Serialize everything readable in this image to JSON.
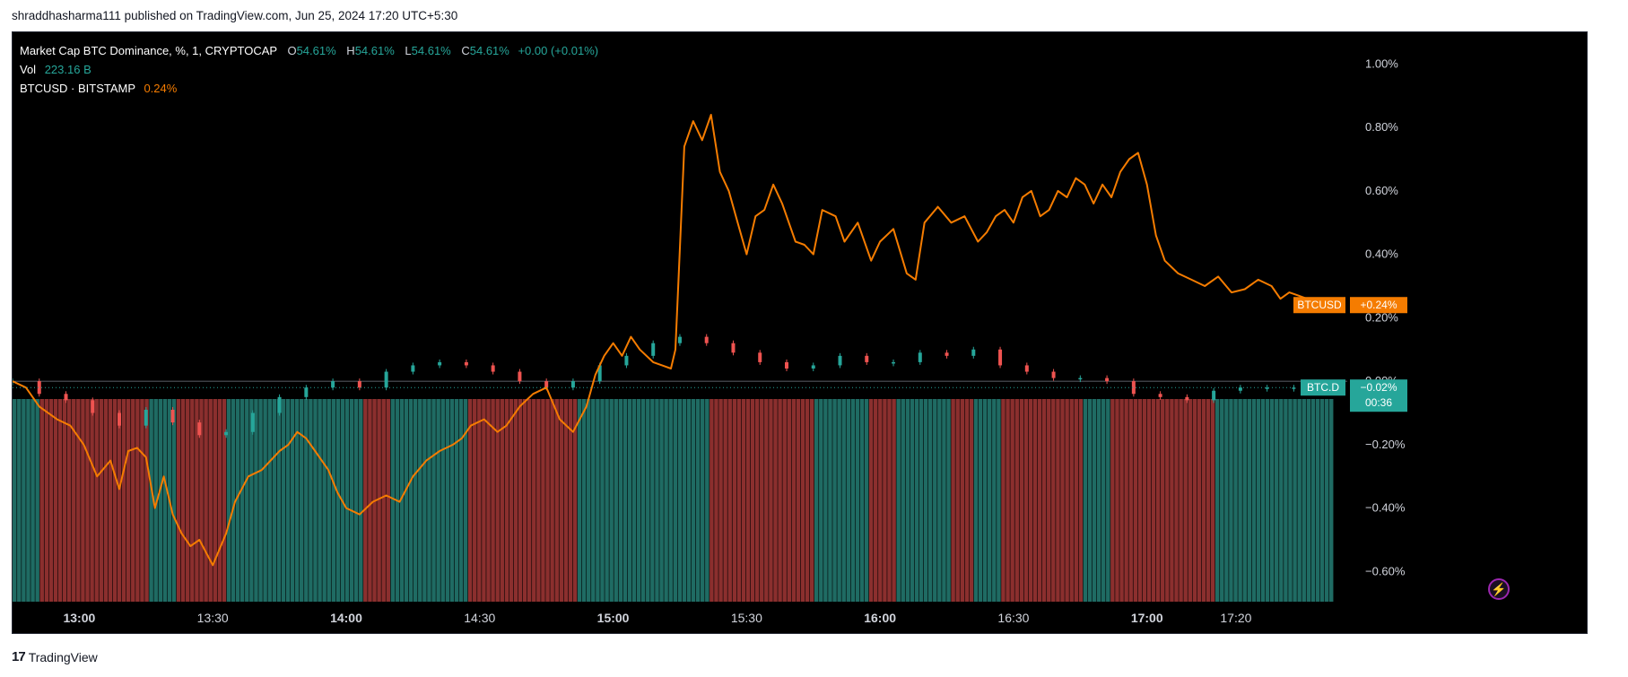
{
  "publish_line": "shraddhasharma111 published on TradingView.com, Jun 25, 2024 17:20 UTC+5:30",
  "legend": {
    "main_title": "Market Cap BTC Dominance, %, 1, CRYPTOCAP",
    "o_label": "O",
    "o_value": "54.61%",
    "h_label": "H",
    "h_value": "54.61%",
    "l_label": "L",
    "l_value": "54.61%",
    "c_label": "C",
    "c_value": "54.61%",
    "change": "+0.00 (+0.01%)",
    "vol_label": "Vol",
    "vol_value": "223.16 B",
    "compare_label": "BTCUSD · BITSTAMP",
    "compare_value": "0.24%"
  },
  "footer": {
    "brand": "TradingView",
    "logo": "tradingview-logo-icon"
  },
  "icons": {
    "alert": "lightning-icon"
  },
  "colors": {
    "up": "#26a69a",
    "down": "#ef5350",
    "compare": "#f57c00",
    "background": "#000000",
    "axis_text": "#d1d4dc"
  },
  "chart_data": {
    "type": "line",
    "title": "Market Cap BTC Dominance, %, 1, CRYPTOCAP",
    "xlabel": "",
    "ylabel": "",
    "x_ticks": [
      "13:00",
      "13:30",
      "14:00",
      "14:30",
      "15:00",
      "15:30",
      "16:00",
      "16:30",
      "17:00",
      "17:20"
    ],
    "x_tick_minutes": [
      780,
      810,
      840,
      870,
      900,
      930,
      960,
      990,
      1020,
      1040
    ],
    "x_range_minutes": [
      765,
      1063
    ],
    "y_ticks": [
      "1.00%",
      "0.80%",
      "0.60%",
      "0.40%",
      "0.20%",
      "0.00%",
      "−0.20%",
      "−0.40%",
      "−0.60%"
    ],
    "y_tick_values": [
      1.0,
      0.8,
      0.6,
      0.4,
      0.2,
      0.0,
      -0.2,
      -0.4,
      -0.6
    ],
    "ylim": [
      -0.695,
      1.1
    ],
    "grid": false,
    "price_labels": [
      {
        "name": "BTCUSD",
        "value_text": "+0.24%",
        "value": 0.24
      },
      {
        "name": "BTC.D",
        "value_text": "−0.02%",
        "countdown": "00:36",
        "value": -0.02
      }
    ],
    "series": [
      {
        "name": "BTCUSD · BITSTAMP",
        "style": "line",
        "time_minutes": [
          765,
          768,
          771,
          775,
          778,
          781,
          784,
          787,
          789,
          791,
          793,
          795,
          797,
          799,
          801,
          803,
          805,
          807,
          810,
          813,
          815,
          818,
          821,
          823,
          825,
          827,
          829,
          831,
          833,
          836,
          838,
          840,
          843,
          846,
          849,
          852,
          855,
          858,
          861,
          864,
          866,
          868,
          871,
          874,
          876,
          879,
          882,
          885,
          888,
          891,
          894,
          896,
          898,
          900,
          902,
          904,
          906,
          909,
          911,
          913,
          914,
          915,
          916,
          918,
          920,
          922,
          924,
          926,
          928,
          930,
          932,
          934,
          936,
          938,
          941,
          943,
          945,
          947,
          950,
          952,
          955,
          958,
          960,
          963,
          966,
          968,
          970,
          973,
          976,
          979,
          982,
          984,
          986,
          988,
          990,
          992,
          994,
          996,
          998,
          1000,
          1002,
          1004,
          1006,
          1008,
          1010,
          1012,
          1014,
          1016,
          1018,
          1020,
          1022,
          1024,
          1027,
          1030,
          1033,
          1036,
          1039,
          1042,
          1045,
          1048,
          1050,
          1052,
          1054,
          1056,
          1058,
          1060,
          1062
        ],
        "values": [
          0.0,
          -0.02,
          -0.08,
          -0.12,
          -0.14,
          -0.2,
          -0.3,
          -0.25,
          -0.34,
          -0.22,
          -0.21,
          -0.24,
          -0.4,
          -0.3,
          -0.42,
          -0.48,
          -0.52,
          -0.5,
          -0.58,
          -0.48,
          -0.38,
          -0.3,
          -0.28,
          -0.25,
          -0.22,
          -0.2,
          -0.16,
          -0.18,
          -0.22,
          -0.28,
          -0.35,
          -0.4,
          -0.42,
          -0.38,
          -0.36,
          -0.38,
          -0.3,
          -0.25,
          -0.22,
          -0.2,
          -0.18,
          -0.14,
          -0.12,
          -0.16,
          -0.14,
          -0.08,
          -0.04,
          -0.02,
          -0.12,
          -0.16,
          -0.08,
          0.02,
          0.08,
          0.12,
          0.08,
          0.14,
          0.1,
          0.06,
          0.05,
          0.04,
          0.1,
          0.42,
          0.74,
          0.82,
          0.76,
          0.84,
          0.66,
          0.6,
          0.5,
          0.4,
          0.52,
          0.54,
          0.62,
          0.56,
          0.44,
          0.43,
          0.4,
          0.54,
          0.52,
          0.44,
          0.5,
          0.38,
          0.44,
          0.48,
          0.34,
          0.32,
          0.5,
          0.55,
          0.5,
          0.52,
          0.44,
          0.47,
          0.52,
          0.54,
          0.5,
          0.58,
          0.6,
          0.52,
          0.54,
          0.6,
          0.58,
          0.64,
          0.62,
          0.56,
          0.62,
          0.58,
          0.66,
          0.7,
          0.72,
          0.62,
          0.46,
          0.38,
          0.34,
          0.32,
          0.3,
          0.33,
          0.28,
          0.29,
          0.32,
          0.3,
          0.26,
          0.28,
          0.27,
          0.26,
          0.24,
          0.23,
          0.24
        ]
      },
      {
        "name": "Market Cap BTC Dominance",
        "style": "candles",
        "time_minutes": [
          765,
          771,
          777,
          783,
          789,
          795,
          801,
          807,
          813,
          819,
          825,
          831,
          837,
          843,
          849,
          855,
          861,
          867,
          873,
          879,
          885,
          891,
          897,
          903,
          909,
          915,
          921,
          927,
          933,
          939,
          945,
          951,
          957,
          963,
          969,
          975,
          981,
          987,
          993,
          999,
          1005,
          1011,
          1017,
          1023,
          1029,
          1035,
          1041,
          1047,
          1053,
          1059
        ],
        "values": [
          0.0,
          -0.04,
          -0.06,
          -0.1,
          -0.14,
          -0.09,
          -0.13,
          -0.17,
          -0.16,
          -0.1,
          -0.05,
          -0.02,
          0.0,
          -0.02,
          0.03,
          0.05,
          0.06,
          0.05,
          0.03,
          0.0,
          -0.02,
          0.0,
          0.05,
          0.08,
          0.12,
          0.14,
          0.12,
          0.09,
          0.06,
          0.04,
          0.05,
          0.08,
          0.06,
          0.06,
          0.09,
          0.08,
          0.1,
          0.05,
          0.03,
          0.01,
          0.01,
          0.0,
          -0.04,
          -0.05,
          -0.06,
          -0.03,
          -0.02,
          -0.02,
          -0.02,
          -0.02
        ]
      },
      {
        "name": "Vol",
        "style": "volume-bars",
        "note_values": "volume colored by candle direction, 223.16 B last"
      }
    ]
  }
}
